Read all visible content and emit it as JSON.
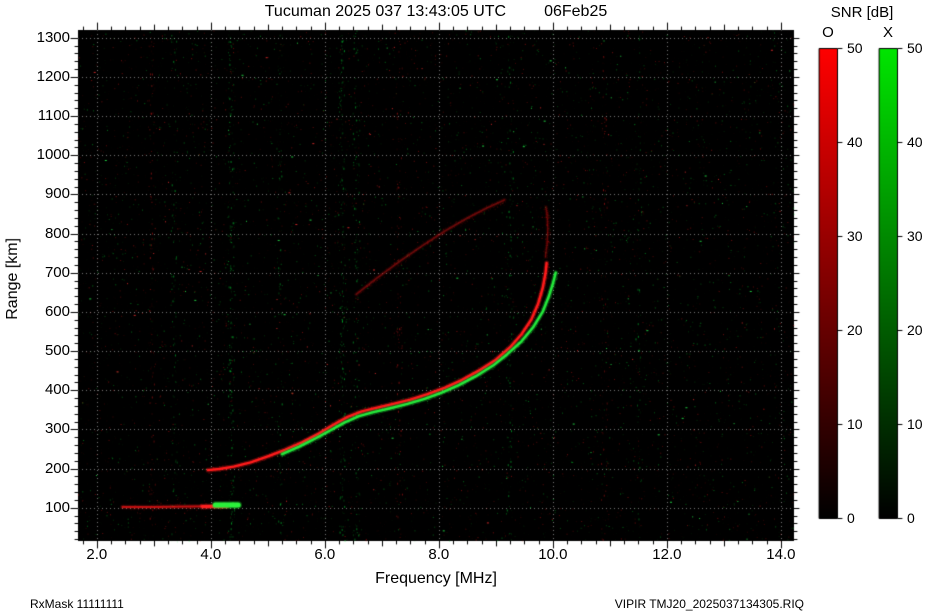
{
  "header": {
    "title_station": "Tucuman 2025 037 13:43:05 UTC",
    "title_date": "06Feb25"
  },
  "footer": {
    "left": "RxMask 11111111",
    "right": "VIPIR  TMJ20_2025037134305.RIQ"
  },
  "colorbar": {
    "title": "SNR [dB]",
    "o_label": "O",
    "x_label": "X",
    "ticks": [
      0,
      10,
      20,
      30,
      40,
      50
    ],
    "max": 50,
    "o_color": "#ff0000",
    "x_color": "#00e600"
  },
  "chart_data": {
    "type": "scatter",
    "title": "Tucuman 2025 037 13:43:05 UTC    06Feb25",
    "xlabel": "Frequency [MHz]",
    "ylabel": "Range [km]",
    "xlim": [
      1.67,
      14.23
    ],
    "ylim": [
      15,
      1320
    ],
    "x_ticks": [
      2,
      4,
      6,
      8,
      10,
      12,
      14
    ],
    "x_tick_labels": [
      "2.0",
      "4.0",
      "6.0",
      "8.0",
      "10.0",
      "12.0",
      "14.0"
    ],
    "y_ticks": [
      100,
      200,
      300,
      400,
      500,
      600,
      700,
      800,
      900,
      1000,
      1100,
      1200,
      1300
    ],
    "y_tick_labels": [
      "100",
      "200",
      "300",
      "400",
      "500",
      "600",
      "700",
      "800",
      "900",
      "1000",
      "1100",
      "1200",
      "1300"
    ],
    "grid": true,
    "background": "#000000",
    "legend": "none",
    "series": [
      {
        "name": "f2-second-reflection-o",
        "color": "#b31212",
        "width": 1.6,
        "alpha": 0.5,
        "fuzz": 260,
        "points": [
          [
            6.55,
            645
          ],
          [
            6.9,
            685
          ],
          [
            7.3,
            728
          ],
          [
            7.7,
            768
          ],
          [
            8.1,
            806
          ],
          [
            8.5,
            840
          ],
          [
            8.85,
            866
          ],
          [
            9.15,
            886
          ]
        ]
      },
      {
        "name": "fof2-spread-o",
        "color": "#a81111",
        "width": 1.4,
        "alpha": 0.45,
        "fuzz": 160,
        "points": [
          [
            9.87,
            740
          ],
          [
            9.9,
            775
          ],
          [
            9.91,
            810
          ],
          [
            9.9,
            845
          ],
          [
            9.88,
            868
          ]
        ]
      },
      {
        "name": "e-region-o-echo",
        "color": "#e01414",
        "width": 2,
        "alpha": 0.8,
        "fuzz": 150,
        "points": [
          [
            2.45,
            102
          ],
          [
            3.0,
            102
          ],
          [
            3.6,
            103
          ],
          [
            4.05,
            104
          ],
          [
            4.3,
            105
          ]
        ]
      },
      {
        "name": "e-region-o-bright",
        "color": "#ff2020",
        "width": 3,
        "alpha": 1,
        "fuzz": 0,
        "points": [
          [
            3.85,
            103
          ],
          [
            4.28,
            104
          ]
        ]
      },
      {
        "name": "e-region-x-echo",
        "color": "#2cf23c",
        "width": 5,
        "alpha": 1,
        "fuzz": 60,
        "points": [
          [
            4.08,
            107
          ],
          [
            4.48,
            107
          ]
        ]
      },
      {
        "name": "f-trace-o",
        "color": "#ff1c1c",
        "width": 2.4,
        "alpha": 1,
        "fuzz": 700,
        "points": [
          [
            3.95,
            196
          ],
          [
            4.15,
            199
          ],
          [
            4.4,
            205
          ],
          [
            4.7,
            216
          ],
          [
            5.0,
            231
          ],
          [
            5.3,
            248
          ],
          [
            5.6,
            267
          ],
          [
            5.9,
            290
          ],
          [
            6.15,
            312
          ],
          [
            6.4,
            332
          ],
          [
            6.65,
            346
          ],
          [
            6.9,
            355
          ],
          [
            7.2,
            365
          ],
          [
            7.5,
            376
          ],
          [
            7.8,
            390
          ],
          [
            8.1,
            406
          ],
          [
            8.4,
            426
          ],
          [
            8.7,
            450
          ],
          [
            9.0,
            478
          ],
          [
            9.25,
            510
          ],
          [
            9.45,
            543
          ],
          [
            9.62,
            580
          ],
          [
            9.74,
            620
          ],
          [
            9.82,
            660
          ],
          [
            9.87,
            698
          ],
          [
            9.89,
            725
          ]
        ]
      },
      {
        "name": "f-trace-x",
        "color": "#25e83c",
        "width": 2.4,
        "alpha": 1,
        "fuzz": 520,
        "points": [
          [
            5.25,
            237
          ],
          [
            5.55,
            256
          ],
          [
            5.85,
            278
          ],
          [
            6.1,
            298
          ],
          [
            6.35,
            318
          ],
          [
            6.6,
            334
          ],
          [
            6.85,
            344
          ],
          [
            7.15,
            354
          ],
          [
            7.45,
            365
          ],
          [
            7.75,
            378
          ],
          [
            8.05,
            394
          ],
          [
            8.35,
            413
          ],
          [
            8.65,
            436
          ],
          [
            8.95,
            463
          ],
          [
            9.2,
            492
          ],
          [
            9.45,
            525
          ],
          [
            9.65,
            560
          ],
          [
            9.82,
            600
          ],
          [
            9.93,
            640
          ],
          [
            10.0,
            672
          ],
          [
            10.05,
            700
          ]
        ]
      }
    ],
    "interference_columns": [
      {
        "f": 2.95,
        "color": "red",
        "strength": 0.5
      },
      {
        "f": 3.35,
        "color": "green",
        "strength": 0.35
      },
      {
        "f": 4.35,
        "color": "green",
        "strength": 0.9
      },
      {
        "f": 5.2,
        "color": "green",
        "strength": 0.4
      },
      {
        "f": 6.3,
        "color": "green",
        "strength": 0.8
      },
      {
        "f": 6.55,
        "color": "green",
        "strength": 0.5
      },
      {
        "f": 7.3,
        "color": "red",
        "strength": 0.4
      },
      {
        "f": 9.25,
        "color": "green",
        "strength": 0.45
      },
      {
        "f": 10.9,
        "color": "red",
        "strength": 0.35
      },
      {
        "f": 11.5,
        "color": "green",
        "strength": 0.3
      }
    ]
  }
}
